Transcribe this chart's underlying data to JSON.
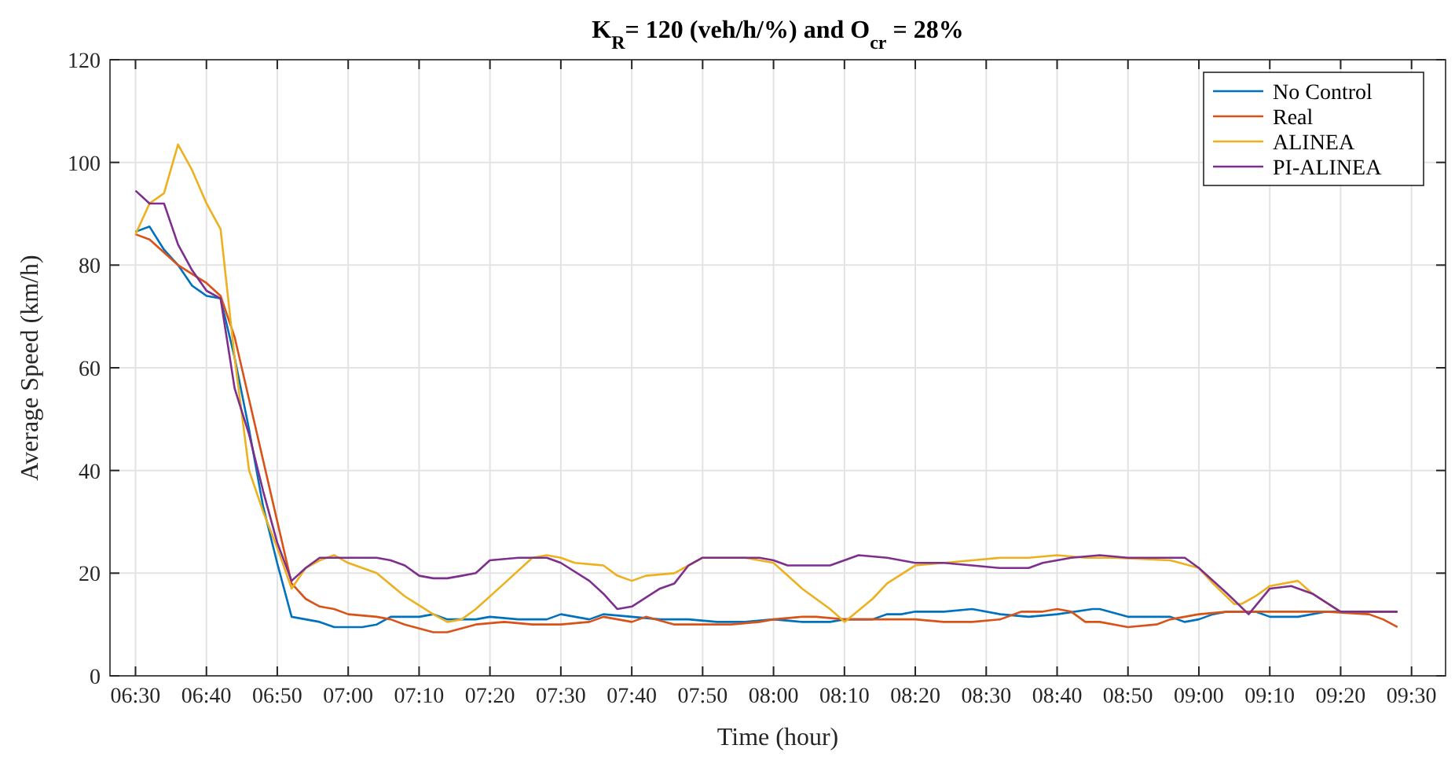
{
  "chart_data": {
    "type": "line",
    "title": "K$_{R}$= 120 (veh/h/%) and O$_{cr}$ = 28%",
    "xlabel": "Time (hour)",
    "ylabel": "Average Speed (km/h)",
    "xlim": [
      6.44,
      9.58
    ],
    "xticks": [
      {
        "value": 6.5,
        "label": "06:30"
      },
      {
        "value": 6.6667,
        "label": "06:40"
      },
      {
        "value": 6.8333,
        "label": "06:50"
      },
      {
        "value": 7,
        "label": "07:00"
      },
      {
        "value": 7.1667,
        "label": "07:10"
      },
      {
        "value": 7.3333,
        "label": "07:20"
      },
      {
        "value": 7.5,
        "label": "07:30"
      },
      {
        "value": 7.6667,
        "label": "07:40"
      },
      {
        "value": 7.8333,
        "label": "07:50"
      },
      {
        "value": 8,
        "label": "08:00"
      },
      {
        "value": 8.1667,
        "label": "08:10"
      },
      {
        "value": 8.3333,
        "label": "08:20"
      },
      {
        "value": 8.5,
        "label": "08:30"
      },
      {
        "value": 8.6667,
        "label": "08:40"
      },
      {
        "value": 8.8333,
        "label": "08:50"
      },
      {
        "value": 9,
        "label": "09:00"
      },
      {
        "value": 9.1667,
        "label": "09:10"
      },
      {
        "value": 9.3333,
        "label": "09:20"
      },
      {
        "value": 9.5,
        "label": "09:30"
      }
    ],
    "ylim": [
      0,
      120
    ],
    "yticks": [
      0,
      20,
      40,
      60,
      80,
      100,
      120
    ],
    "grid": true,
    "legend": "top right",
    "series": [
      {
        "name": "No Control",
        "color": "#0072bd",
        "x": [
          6.5,
          6.533,
          6.567,
          6.6,
          6.633,
          6.667,
          6.7,
          6.733,
          6.767,
          6.8,
          6.833,
          6.867,
          6.9,
          6.933,
          6.967,
          7,
          7.033,
          7.067,
          7.1,
          7.133,
          7.167,
          7.2,
          7.233,
          7.267,
          7.3,
          7.333,
          7.4,
          7.467,
          7.5,
          7.567,
          7.6,
          7.667,
          7.733,
          7.8,
          7.867,
          7.933,
          8,
          8.067,
          8.133,
          8.167,
          8.233,
          8.267,
          8.3,
          8.333,
          8.4,
          8.467,
          8.533,
          8.6,
          8.667,
          8.75,
          8.767,
          8.833,
          8.933,
          8.967,
          9,
          9.033,
          9.067,
          9.133,
          9.167,
          9.233,
          9.3,
          9.467
        ],
        "values": [
          86.5,
          87.5,
          83,
          80,
          76,
          74,
          73.5,
          62,
          48,
          33,
          22,
          11.5,
          11,
          10.5,
          9.5,
          9.5,
          9.5,
          10,
          11.5,
          11.5,
          11.5,
          12,
          11,
          11,
          11,
          11.5,
          11,
          11,
          12,
          11,
          12,
          11.5,
          11,
          11,
          10.5,
          10.5,
          11,
          10.5,
          10.5,
          11,
          11,
          12,
          12,
          12.5,
          12.5,
          13,
          12,
          11.5,
          12,
          13,
          13,
          11.5,
          11.5,
          10.5,
          11,
          12,
          12.5,
          12.5,
          11.5,
          11.5,
          12.5,
          12.5
        ]
      },
      {
        "name": "Real",
        "color": "#d95319",
        "x": [
          6.5,
          6.533,
          6.6,
          6.667,
          6.7,
          6.733,
          6.8,
          6.867,
          6.9,
          6.933,
          6.967,
          7,
          7.067,
          7.1,
          7.133,
          7.2,
          7.233,
          7.3,
          7.367,
          7.433,
          7.5,
          7.567,
          7.6,
          7.667,
          7.7,
          7.767,
          7.833,
          7.9,
          7.967,
          8,
          8.067,
          8.1,
          8.167,
          8.267,
          8.333,
          8.4,
          8.467,
          8.533,
          8.583,
          8.633,
          8.667,
          8.7,
          8.733,
          8.767,
          8.833,
          8.9,
          8.933,
          9,
          9.067,
          9.167,
          9.233,
          9.3,
          9.4,
          9.433,
          9.467
        ],
        "values": [
          86,
          85,
          80,
          76.5,
          74,
          66,
          42,
          18,
          15,
          13.5,
          13,
          12,
          11.5,
          11,
          10,
          8.5,
          8.5,
          10,
          10.5,
          10,
          10,
          10.5,
          11.5,
          10.5,
          11.5,
          10,
          10,
          10,
          10.5,
          11,
          11.5,
          11.5,
          11,
          11,
          11,
          10.5,
          10.5,
          11,
          12.5,
          12.5,
          13,
          12.5,
          10.5,
          10.5,
          9.5,
          10,
          11,
          12,
          12.5,
          12.5,
          12.5,
          12.5,
          12,
          11,
          9.5
        ]
      },
      {
        "name": "ALINEA",
        "color": "#edb120",
        "x": [
          6.5,
          6.533,
          6.567,
          6.6,
          6.633,
          6.667,
          6.7,
          6.733,
          6.767,
          6.8,
          6.833,
          6.867,
          6.9,
          6.933,
          6.967,
          7,
          7.067,
          7.133,
          7.2,
          7.233,
          7.267,
          7.3,
          7.367,
          7.433,
          7.467,
          7.5,
          7.533,
          7.6,
          7.633,
          7.667,
          7.7,
          7.767,
          7.833,
          7.867,
          7.933,
          7.967,
          8,
          8.067,
          8.133,
          8.167,
          8.233,
          8.267,
          8.333,
          8.4,
          8.467,
          8.533,
          8.6,
          8.667,
          8.733,
          8.8,
          8.933,
          9,
          9.033,
          9.083,
          9.1,
          9.133,
          9.167,
          9.233,
          9.267,
          9.333,
          9.467
        ],
        "values": [
          86,
          92,
          94,
          103.5,
          98.5,
          92,
          87,
          62,
          40,
          32,
          25,
          17,
          21,
          22.5,
          23.5,
          22,
          20,
          15.5,
          12,
          10.5,
          11,
          13,
          18,
          23,
          23.5,
          23,
          22,
          21.5,
          19.5,
          18.5,
          19.5,
          20,
          23,
          23,
          23,
          22.5,
          22,
          17,
          13,
          10.5,
          15,
          18,
          21.5,
          22,
          22.5,
          23,
          23,
          23.5,
          23,
          23,
          22.5,
          21,
          18,
          14,
          14,
          15.5,
          17.5,
          18.5,
          16,
          12.5,
          12.5
        ]
      },
      {
        "name": "PI-ALINEA",
        "color": "#7e2f8e",
        "x": [
          6.5,
          6.533,
          6.567,
          6.6,
          6.633,
          6.667,
          6.7,
          6.733,
          6.767,
          6.8,
          6.833,
          6.867,
          6.9,
          6.933,
          6.967,
          7,
          7.067,
          7.1,
          7.133,
          7.167,
          7.2,
          7.233,
          7.267,
          7.3,
          7.333,
          7.4,
          7.467,
          7.5,
          7.567,
          7.6,
          7.633,
          7.667,
          7.733,
          7.767,
          7.8,
          7.833,
          7.9,
          7.967,
          8,
          8.033,
          8.1,
          8.133,
          8.2,
          8.267,
          8.333,
          8.4,
          8.467,
          8.533,
          8.6,
          8.633,
          8.7,
          8.767,
          8.833,
          8.933,
          8.967,
          9,
          9.067,
          9.117,
          9.167,
          9.217,
          9.267,
          9.333,
          9.467
        ],
        "values": [
          94.5,
          92,
          92,
          84,
          79,
          75,
          73.5,
          56,
          47,
          36,
          26,
          18.5,
          21,
          23,
          23,
          23,
          23,
          22.5,
          21.5,
          19.5,
          19,
          19,
          19.5,
          20,
          22.5,
          23,
          23,
          22,
          18.5,
          16,
          13,
          13.5,
          17,
          18,
          21.5,
          23,
          23,
          23,
          22.5,
          21.5,
          21.5,
          21.5,
          23.5,
          23,
          22,
          22,
          21.5,
          21,
          21,
          22,
          23,
          23.5,
          23,
          23,
          23,
          21,
          16,
          12,
          17,
          17.5,
          16,
          12.5,
          12.5
        ]
      }
    ]
  }
}
